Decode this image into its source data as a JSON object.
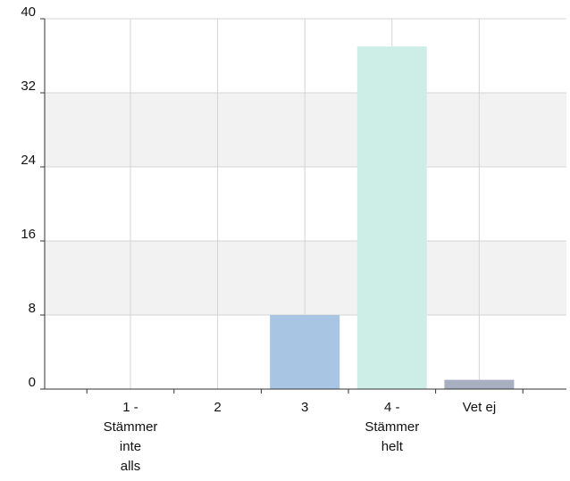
{
  "chart_data": {
    "type": "bar",
    "title": "",
    "xlabel": "",
    "ylabel": "",
    "categories": [
      [
        "1 -",
        "Stämmer",
        "inte",
        "alls"
      ],
      [
        "2"
      ],
      [
        "3"
      ],
      [
        "4 -",
        "Stämmer",
        "helt"
      ],
      [
        "Vet ej"
      ]
    ],
    "values": [
      0,
      0,
      8,
      37,
      1
    ],
    "bar_colors": [
      "#a8c6e3",
      "#a8c6e3",
      "#a8c6e3",
      "#cdeee6",
      "#a7afc0"
    ],
    "ylim": [
      0,
      40
    ],
    "yticks": [
      0,
      8,
      16,
      24,
      32,
      40
    ],
    "grid": true,
    "band_color": "#f2f2f2"
  }
}
